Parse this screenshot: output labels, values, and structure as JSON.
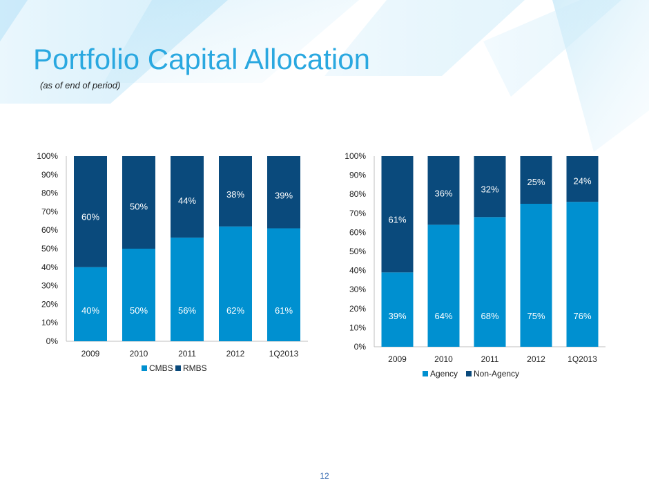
{
  "slide": {
    "title": "Portfolio Capital Allocation",
    "subtitle": "(as of end of period)",
    "page_number": "12"
  },
  "colors": {
    "accent": "#2aa8e0",
    "light_series": "#0090d0",
    "dark_series": "#0a4a7c",
    "title": "#2aa8e0"
  },
  "chart_data": [
    {
      "type": "bar",
      "stacked": true,
      "categories": [
        "2009",
        "2010",
        "2011",
        "2012",
        "1Q2013"
      ],
      "series": [
        {
          "name": "CMBS",
          "values": [
            40,
            50,
            56,
            62,
            61
          ],
          "labels": [
            "40%",
            "50%",
            "56%",
            "62%",
            "61%"
          ],
          "color": "#0090d0"
        },
        {
          "name": "RMBS",
          "values": [
            60,
            50,
            44,
            38,
            39
          ],
          "labels": [
            "60%",
            "50%",
            "44%",
            "38%",
            "39%"
          ],
          "color": "#0a4a7c"
        }
      ],
      "ylim": [
        0,
        100
      ],
      "yticks": [
        "0%",
        "10%",
        "20%",
        "30%",
        "40%",
        "50%",
        "60%",
        "70%",
        "80%",
        "90%",
        "100%"
      ],
      "legend": "bottom",
      "grid": false
    },
    {
      "type": "bar",
      "stacked": true,
      "categories": [
        "2009",
        "2010",
        "2011",
        "2012",
        "1Q2013"
      ],
      "series": [
        {
          "name": "Agency",
          "values": [
            39,
            64,
            68,
            75,
            76
          ],
          "labels": [
            "39%",
            "64%",
            "68%",
            "75%",
            "76%"
          ],
          "color": "#0090d0"
        },
        {
          "name": "Non-Agency",
          "values": [
            61,
            36,
            32,
            25,
            24
          ],
          "labels": [
            "61%",
            "36%",
            "32%",
            "25%",
            "24%"
          ],
          "color": "#0a4a7c"
        }
      ],
      "ylim": [
        0,
        100
      ],
      "yticks": [
        "0%",
        "10%",
        "20%",
        "30%",
        "40%",
        "50%",
        "60%",
        "70%",
        "80%",
        "90%",
        "100%"
      ],
      "legend": "bottom",
      "grid": false
    }
  ]
}
